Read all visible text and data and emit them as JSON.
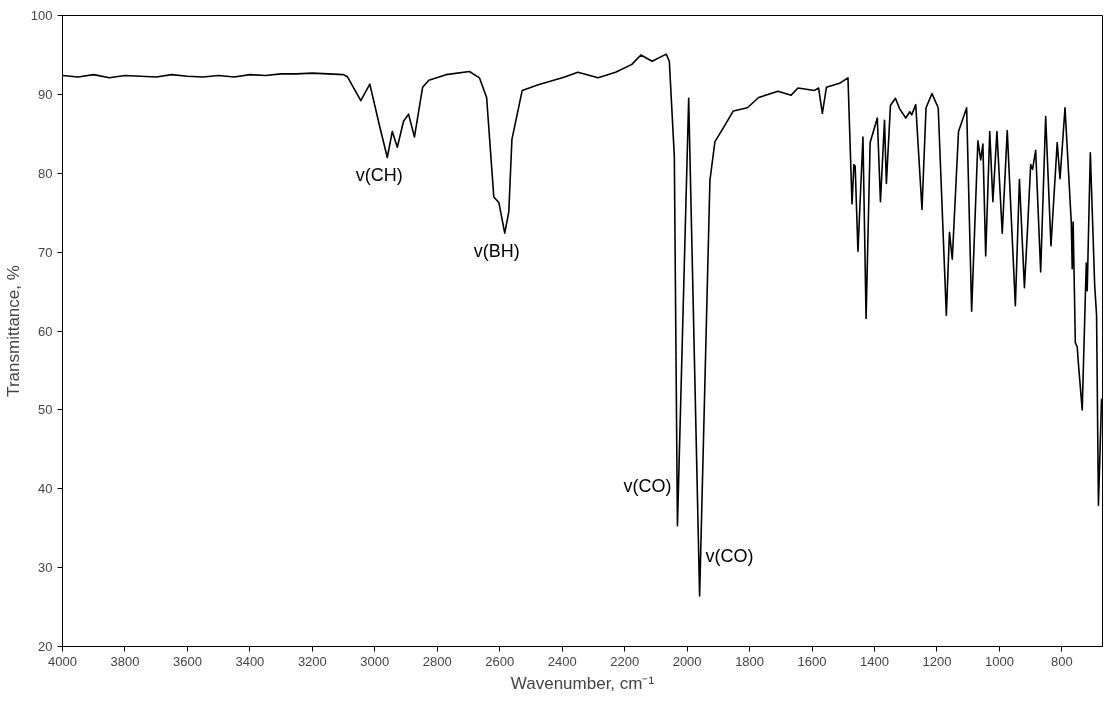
{
  "chart_data": {
    "type": "line",
    "xlabel": "Wavenumber, cm⁻¹",
    "ylabel": "Transmittance, %",
    "x": [
      4000,
      3950,
      3900,
      3850,
      3800,
      3750,
      3700,
      3650,
      3600,
      3550,
      3500,
      3450,
      3400,
      3350,
      3300,
      3250,
      3200,
      3150,
      3100,
      3087,
      3045,
      3016,
      2983,
      2960,
      2944,
      2928,
      2908,
      2892,
      2873,
      2847,
      2827,
      2772,
      2697,
      2665,
      2642,
      2619,
      2603,
      2600,
      2584,
      2571,
      2561,
      2528,
      2479,
      2392,
      2350,
      2285,
      2229,
      2177,
      2148,
      2112,
      2067,
      2057,
      2041,
      2031,
      1995,
      1960,
      1927,
      1911,
      1885,
      1852,
      1807,
      1771,
      1709,
      1667,
      1645,
      1592,
      1579,
      1567,
      1554,
      1512,
      1485,
      1472,
      1466,
      1462,
      1453,
      1437,
      1427,
      1414,
      1391,
      1381,
      1368,
      1362,
      1349,
      1333,
      1320,
      1300,
      1287,
      1281,
      1268,
      1248,
      1235,
      1216,
      1196,
      1170,
      1160,
      1151,
      1131,
      1105,
      1089,
      1069,
      1060,
      1053,
      1044,
      1031,
      1021,
      1008,
      991,
      975,
      949,
      936,
      920,
      910,
      900,
      894,
      884,
      868,
      852,
      835,
      815,
      806,
      790,
      770,
      767,
      764,
      757,
      751,
      748,
      735,
      722,
      719,
      709,
      695,
      689,
      683,
      673
    ],
    "series": [
      {
        "color": "#000000",
        "values": [
          92.4,
          92.2,
          92.5,
          92.1,
          92.4,
          92.3,
          92.2,
          92.5,
          92.3,
          92.2,
          92.4,
          92.2,
          92.5,
          92.4,
          92.6,
          92.6,
          92.7,
          92.6,
          92.5,
          92.2,
          89.2,
          91.3,
          85.7,
          82.0,
          85.3,
          83.3,
          86.6,
          87.5,
          84.6,
          90.9,
          91.8,
          92.5,
          92.9,
          92.1,
          89.6,
          77.0,
          76.3,
          75.7,
          72.4,
          75.1,
          84.3,
          90.5,
          91.2,
          92.2,
          92.8,
          92.1,
          92.8,
          93.8,
          95.0,
          94.2,
          95.1,
          94.2,
          82.2,
          35.3,
          89.5,
          26.4,
          79.1,
          84.0,
          85.7,
          87.9,
          88.3,
          89.6,
          90.4,
          89.9,
          90.8,
          90.5,
          90.8,
          87.6,
          90.9,
          91.4,
          92.1,
          76.1,
          81.1,
          80.9,
          70.1,
          84.6,
          61.6,
          83.9,
          87.0,
          76.4,
          86.7,
          78.7,
          88.6,
          89.5,
          88.2,
          87.0,
          87.8,
          87.4,
          88.7,
          75.4,
          88.3,
          90.1,
          88.3,
          62.0,
          72.5,
          69.1,
          85.3,
          88.3,
          62.5,
          84.1,
          81.7,
          83.7,
          69.5,
          85.3,
          76.4,
          85.3,
          72.4,
          85.4,
          63.2,
          79.2,
          65.5,
          73.0,
          81.1,
          80.5,
          82.9,
          67.5,
          87.2,
          70.8,
          83.9,
          79.3,
          88.3,
          73.8,
          67.9,
          73.8,
          58.5,
          58.0,
          56.3,
          50.0,
          68.6,
          65.1,
          82.6,
          65.8,
          62.0,
          37.9,
          51.4
        ]
      }
    ],
    "xlim": [
      4000,
      670
    ],
    "xticks": [
      4000,
      3800,
      3600,
      3400,
      3200,
      3000,
      2800,
      2600,
      2400,
      2200,
      2000,
      1800,
      1600,
      1400,
      1200,
      1000,
      800
    ],
    "ylim": [
      20,
      100
    ],
    "yticks": [
      20,
      30,
      40,
      50,
      60,
      70,
      80,
      90,
      100
    ],
    "annotations": [
      {
        "text": "v(CH)",
        "x": 2960,
        "y": 82.0
      },
      {
        "text": "v(BH)",
        "x": 2584,
        "y": 72.4
      },
      {
        "text": "v(CO)",
        "x": 2031,
        "y": 35.3
      },
      {
        "text": "v(CO)",
        "x": 1960,
        "y": 26.4
      }
    ],
    "grid": false,
    "marker": "none",
    "line_style": "solid"
  }
}
